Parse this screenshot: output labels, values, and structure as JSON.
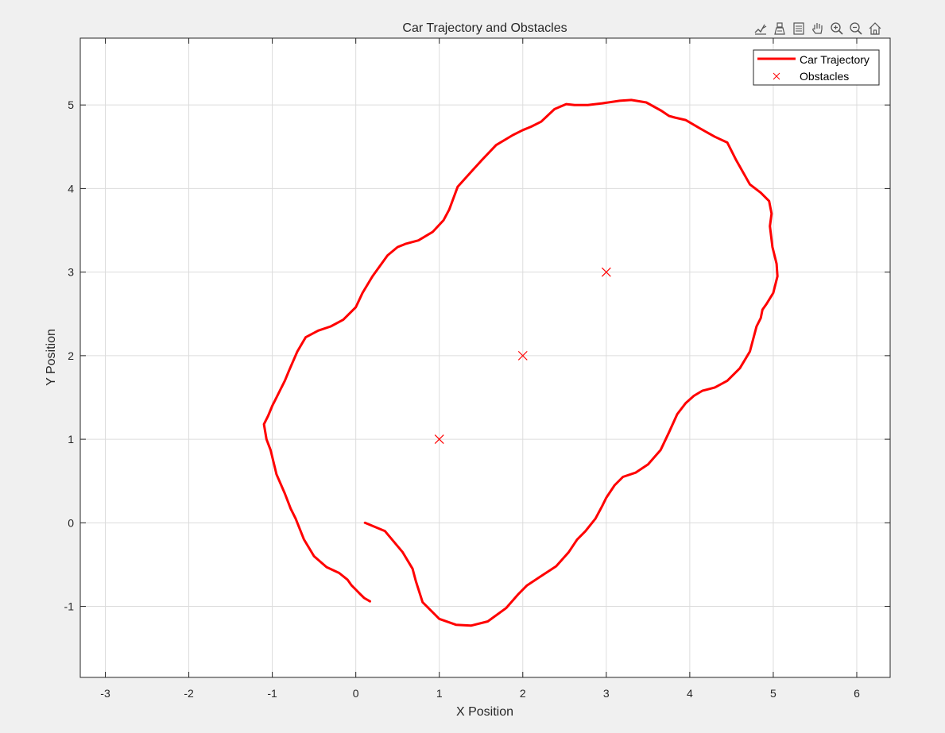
{
  "toolbar": {
    "icons": [
      "brush-edit-icon",
      "data-tips-icon",
      "legend-toggle-icon",
      "pan-hand-icon",
      "zoom-in-icon",
      "zoom-out-icon",
      "home-restore-icon"
    ]
  },
  "colors": {
    "trajectory": "#ff0000",
    "obstacle": "#ff0000",
    "grid": "#dcdcdc",
    "axes": "#262626",
    "figure_bg": "#f0f0f0",
    "plot_bg": "#ffffff"
  },
  "chart_data": {
    "type": "line",
    "title": "Car Trajectory and Obstacles",
    "xlabel": "X Position",
    "ylabel": "Y Position",
    "xlim": [
      -3.3,
      6.4
    ],
    "ylim": [
      -1.85,
      5.8
    ],
    "xticks": [
      -3,
      -2,
      -1,
      0,
      1,
      2,
      3,
      4,
      5,
      6
    ],
    "yticks": [
      -1,
      0,
      1,
      2,
      3,
      4,
      5
    ],
    "grid": true,
    "legend_position": "top-right",
    "series": [
      {
        "name": "Car Trajectory",
        "kind": "line",
        "x": [
          0.11,
          0.35,
          0.56,
          0.68,
          0.72,
          0.8,
          1.0,
          1.2,
          1.38,
          1.58,
          1.8,
          1.95,
          2.05,
          2.2,
          2.4,
          2.55,
          2.65,
          2.75,
          2.87,
          2.95,
          3.0,
          3.1,
          3.2,
          3.35,
          3.5,
          3.65,
          3.75,
          3.85,
          3.95,
          4.05,
          4.15,
          4.3,
          4.45,
          4.6,
          4.72,
          4.8,
          4.85,
          4.87,
          4.92,
          5.0,
          5.05,
          5.04,
          4.99,
          4.96,
          4.98,
          4.95,
          4.85,
          4.72,
          4.55,
          4.45,
          4.3,
          4.12,
          3.95,
          3.82,
          3.75,
          3.66,
          3.48,
          3.3,
          3.16,
          2.95,
          2.78,
          2.62,
          2.52,
          2.38,
          2.22,
          2.1,
          2.0,
          1.88,
          1.68,
          1.5,
          1.4,
          1.22,
          1.12,
          1.05,
          0.92,
          0.75,
          0.6,
          0.5,
          0.38,
          0.2,
          0.08,
          0.0,
          -0.15,
          -0.3,
          -0.45,
          -0.6,
          -0.7,
          -0.8,
          -0.85,
          -0.9,
          -0.95,
          -1.0,
          -1.05,
          -1.1,
          -1.07,
          -1.02,
          -0.95,
          -0.85,
          -0.78,
          -0.72,
          -0.62,
          -0.5,
          -0.35,
          -0.2,
          -0.1,
          -0.05,
          0.0,
          0.05,
          0.1,
          0.17
        ],
        "y": [
          0.0,
          -0.1,
          -0.35,
          -0.55,
          -0.7,
          -0.95,
          -1.15,
          -1.22,
          -1.23,
          -1.18,
          -1.02,
          -0.85,
          -0.75,
          -0.65,
          -0.52,
          -0.35,
          -0.2,
          -0.1,
          0.05,
          0.2,
          0.3,
          0.45,
          0.55,
          0.6,
          0.7,
          0.87,
          1.08,
          1.3,
          1.43,
          1.52,
          1.58,
          1.62,
          1.7,
          1.85,
          2.05,
          2.35,
          2.45,
          2.55,
          2.62,
          2.75,
          2.95,
          3.1,
          3.3,
          3.55,
          3.7,
          3.85,
          3.95,
          4.05,
          4.35,
          4.55,
          4.62,
          4.72,
          4.82,
          4.85,
          4.87,
          4.93,
          5.03,
          5.06,
          5.05,
          5.02,
          5.0,
          5.0,
          5.01,
          4.95,
          4.8,
          4.74,
          4.7,
          4.64,
          4.52,
          4.33,
          4.22,
          4.02,
          3.75,
          3.62,
          3.48,
          3.38,
          3.34,
          3.3,
          3.2,
          2.95,
          2.75,
          2.58,
          2.43,
          2.35,
          2.3,
          2.22,
          2.05,
          1.82,
          1.7,
          1.6,
          1.5,
          1.4,
          1.28,
          1.18,
          1.0,
          0.87,
          0.58,
          0.35,
          0.17,
          0.05,
          -0.2,
          -0.4,
          -0.53,
          -0.6,
          -0.68,
          -0.75,
          -0.8,
          -0.85,
          -0.9,
          -0.94
        ]
      },
      {
        "name": "Obstacles",
        "kind": "marker",
        "marker": "x",
        "x": [
          1,
          2,
          3
        ],
        "y": [
          1,
          2,
          3
        ]
      }
    ]
  }
}
